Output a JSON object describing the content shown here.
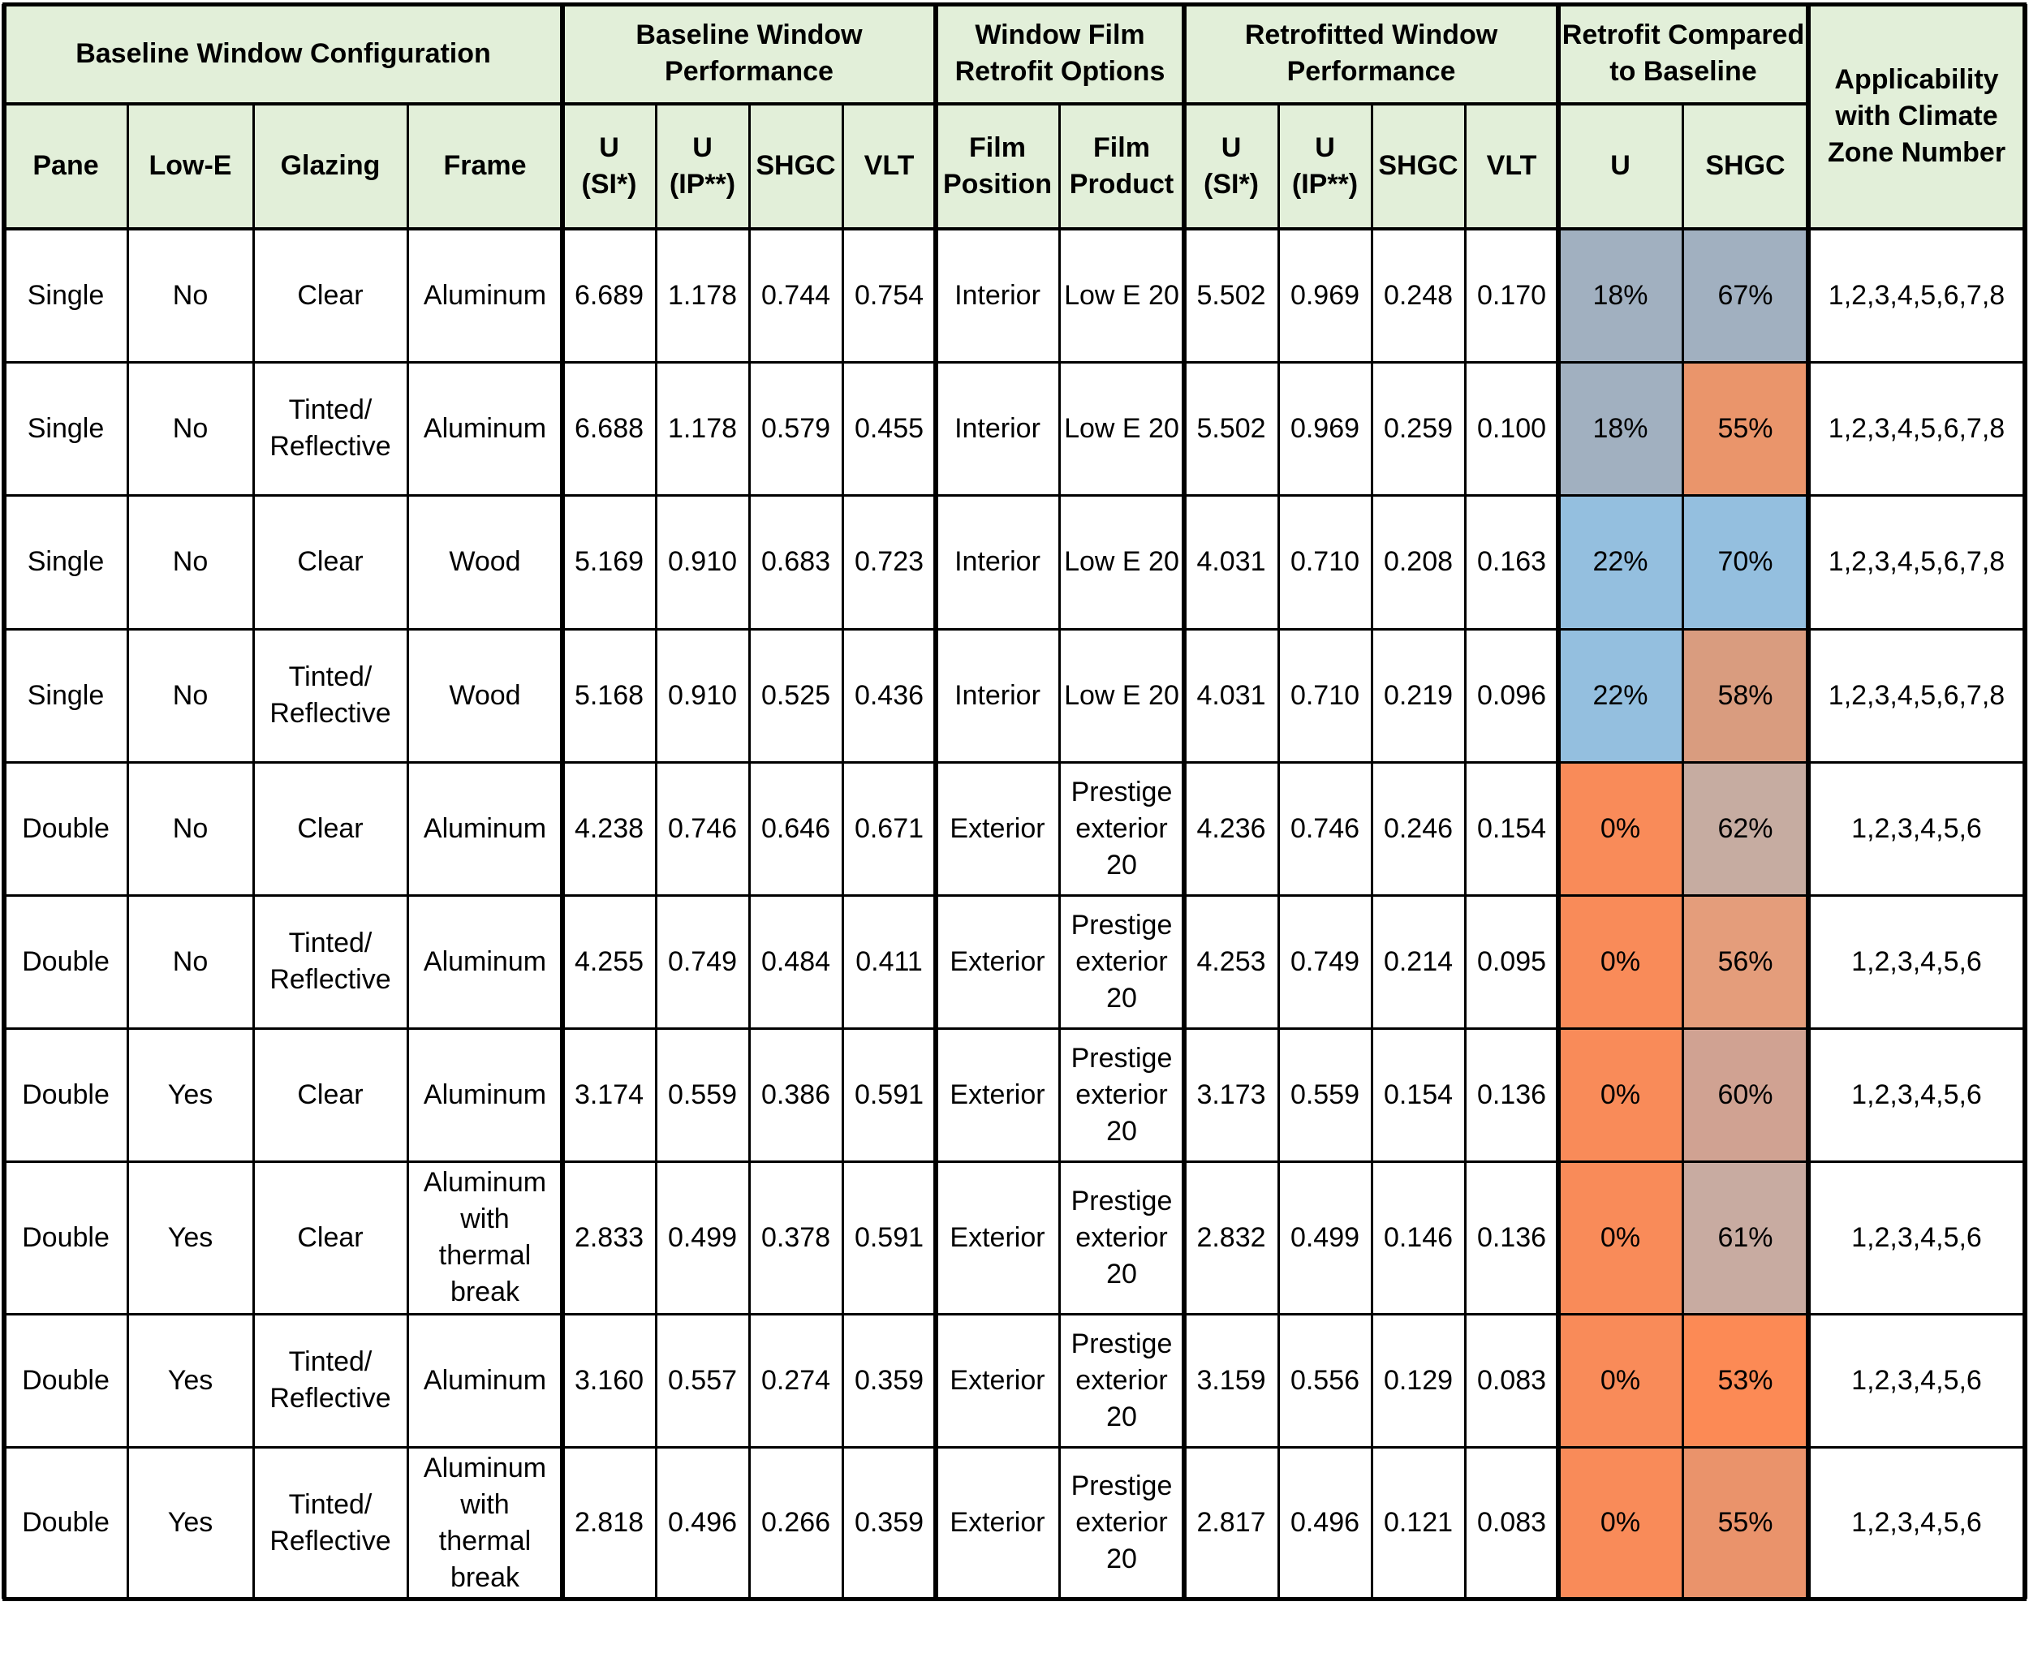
{
  "table": {
    "group_headers": [
      "Baseline Window Configuration",
      "Baseline Window\nPerformance",
      "Window Film\nRetrofit Options",
      "Retrofitted Window\nPerformance",
      "Retrofit Compared\nto Baseline",
      "Applicability\nwith Climate\nZone Number"
    ],
    "column_headers": [
      "Pane",
      "Low-E",
      "Glazing",
      "Frame",
      "U\n(SI*)",
      "U\n(IP**)",
      "SHGC",
      "VLT",
      "Film\nPosition",
      "Film\nProduct",
      "U\n(SI*)",
      "U\n(IP**)",
      "SHGC",
      "VLT",
      "U",
      "SHGC"
    ],
    "rows": [
      [
        "Single",
        "No",
        "Clear",
        "Aluminum",
        "6.689",
        "1.178",
        "0.744",
        "0.754",
        "Interior",
        "Low E 20",
        "5.502",
        "0.969",
        "0.248",
        "0.170",
        "18%",
        "67%",
        "1,2,3,4,5,6,7,8"
      ],
      [
        "Single",
        "No",
        "Tinted/\nReflective",
        "Aluminum",
        "6.688",
        "1.178",
        "0.579",
        "0.455",
        "Interior",
        "Low E 20",
        "5.502",
        "0.969",
        "0.259",
        "0.100",
        "18%",
        "55%",
        "1,2,3,4,5,6,7,8"
      ],
      [
        "Single",
        "No",
        "Clear",
        "Wood",
        "5.169",
        "0.910",
        "0.683",
        "0.723",
        "Interior",
        "Low E 20",
        "4.031",
        "0.710",
        "0.208",
        "0.163",
        "22%",
        "70%",
        "1,2,3,4,5,6,7,8"
      ],
      [
        "Single",
        "No",
        "Tinted/\nReflective",
        "Wood",
        "5.168",
        "0.910",
        "0.525",
        "0.436",
        "Interior",
        "Low E 20",
        "4.031",
        "0.710",
        "0.219",
        "0.096",
        "22%",
        "58%",
        "1,2,3,4,5,6,7,8"
      ],
      [
        "Double",
        "No",
        "Clear",
        "Aluminum",
        "4.238",
        "0.746",
        "0.646",
        "0.671",
        "Exterior",
        "Prestige\nexterior\n20",
        "4.236",
        "0.746",
        "0.246",
        "0.154",
        "0%",
        "62%",
        "1,2,3,4,5,6"
      ],
      [
        "Double",
        "No",
        "Tinted/\nReflective",
        "Aluminum",
        "4.255",
        "0.749",
        "0.484",
        "0.411",
        "Exterior",
        "Prestige\nexterior\n20",
        "4.253",
        "0.749",
        "0.214",
        "0.095",
        "0%",
        "56%",
        "1,2,3,4,5,6"
      ],
      [
        "Double",
        "Yes",
        "Clear",
        "Aluminum",
        "3.174",
        "0.559",
        "0.386",
        "0.591",
        "Exterior",
        "Prestige\nexterior\n20",
        "3.173",
        "0.559",
        "0.154",
        "0.136",
        "0%",
        "60%",
        "1,2,3,4,5,6"
      ],
      [
        "Double",
        "Yes",
        "Clear",
        "Aluminum\nwith\nthermal\nbreak",
        "2.833",
        "0.499",
        "0.378",
        "0.591",
        "Exterior",
        "Prestige\nexterior\n20",
        "2.832",
        "0.499",
        "0.146",
        "0.136",
        "0%",
        "61%",
        "1,2,3,4,5,6"
      ],
      [
        "Double",
        "Yes",
        "Tinted/\nReflective",
        "Aluminum",
        "3.160",
        "0.557",
        "0.274",
        "0.359",
        "Exterior",
        "Prestige\nexterior\n20",
        "3.159",
        "0.556",
        "0.129",
        "0.083",
        "0%",
        "53%",
        "1,2,3,4,5,6"
      ],
      [
        "Double",
        "Yes",
        "Tinted/\nReflective",
        "Aluminum\nwith\nthermal\nbreak",
        "2.818",
        "0.496",
        "0.266",
        "0.359",
        "Exterior",
        "Prestige\nexterior\n20",
        "2.817",
        "0.496",
        "0.121",
        "0.083",
        "0%",
        "55%",
        "1,2,3,4,5,6"
      ]
    ],
    "comparison_colors": [
      [
        "#a1b0c0",
        "#a1b0c0"
      ],
      [
        "#a1b0c0",
        "#ea956b"
      ],
      [
        "#94bfdf",
        "#94bfdf"
      ],
      [
        "#94bfdf",
        "#d99c7f"
      ],
      [
        "#f98b59",
        "#c6aca1"
      ],
      [
        "#f98b59",
        "#e49d7b"
      ],
      [
        "#f98b59",
        "#d0a292"
      ],
      [
        "#f98b59",
        "#c8aba1"
      ],
      [
        "#f98b59",
        "#fc8a55"
      ],
      [
        "#f98b59",
        "#ea936b"
      ]
    ],
    "header_fill": "#e2efd9"
  }
}
